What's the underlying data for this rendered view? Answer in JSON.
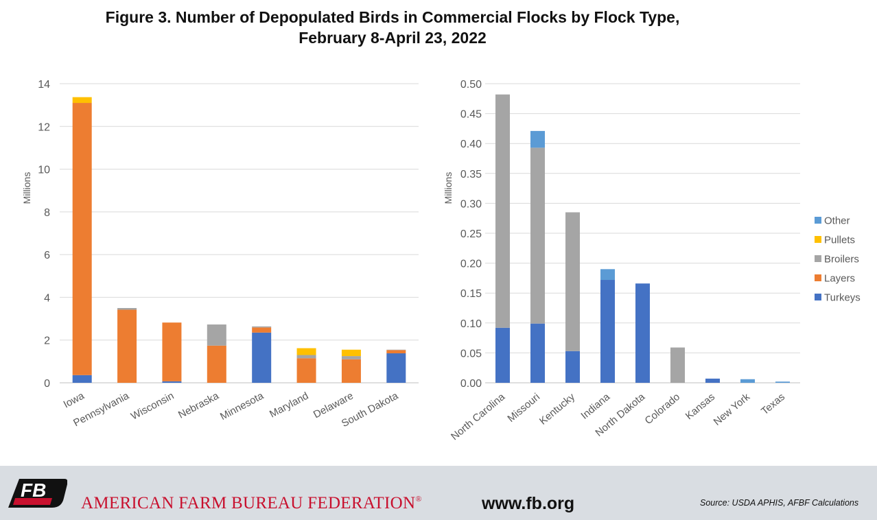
{
  "title": {
    "line1": "Figure 3. Number of Depopulated Birds in Commercial Flocks by Flock Type,",
    "line2": "February 8-April 23, 2022"
  },
  "legend": {
    "items": [
      {
        "label": "Other",
        "color": "#5b9bd5"
      },
      {
        "label": "Pullets",
        "color": "#ffc000"
      },
      {
        "label": "Broilers",
        "color": "#a5a5a5"
      },
      {
        "label": "Layers",
        "color": "#ed7d31"
      },
      {
        "label": "Turkeys",
        "color": "#4472c4"
      }
    ]
  },
  "chart_data": [
    {
      "type": "bar",
      "stacked": true,
      "ylabel": "Millions",
      "ylim": [
        0,
        14
      ],
      "yticks": [
        "0",
        "2",
        "4",
        "6",
        "8",
        "10",
        "12",
        "14"
      ],
      "grid": true,
      "categories": [
        "Iowa",
        "Pennsylvania",
        "Wisconsin",
        "Nebraska",
        "Minnesota",
        "Maryland",
        "Delaware",
        "South Dakota"
      ],
      "series": [
        {
          "name": "Turkeys",
          "color": "#4472c4",
          "values": [
            0.36,
            0.0,
            0.07,
            0.0,
            2.35,
            0.0,
            0.0,
            1.38
          ]
        },
        {
          "name": "Layers",
          "color": "#ed7d31",
          "values": [
            12.74,
            3.42,
            2.75,
            1.74,
            0.24,
            1.15,
            1.1,
            0.15
          ]
        },
        {
          "name": "Broilers",
          "color": "#a5a5a5",
          "values": [
            0.0,
            0.08,
            0.0,
            0.99,
            0.05,
            0.15,
            0.15,
            0.02
          ]
        },
        {
          "name": "Pullets",
          "color": "#ffc000",
          "values": [
            0.27,
            0.0,
            0.0,
            0.0,
            0.0,
            0.32,
            0.3,
            0.0
          ]
        },
        {
          "name": "Other",
          "color": "#5b9bd5",
          "values": [
            0.0,
            0.0,
            0.0,
            0.0,
            0.0,
            0.0,
            0.0,
            0.0
          ]
        }
      ]
    },
    {
      "type": "bar",
      "stacked": true,
      "ylabel": "Millions",
      "ylim": [
        0,
        0.5
      ],
      "yticks": [
        "0.00",
        "0.05",
        "0.10",
        "0.15",
        "0.20",
        "0.25",
        "0.30",
        "0.35",
        "0.40",
        "0.45",
        "0.50"
      ],
      "grid": true,
      "legend_position": "right",
      "categories": [
        "North Carolina",
        "Missouri",
        "Kentucky",
        "Indiana",
        "North Dakota",
        "Colorado",
        "Kansas",
        "New York",
        "Texas"
      ],
      "series": [
        {
          "name": "Turkeys",
          "color": "#4472c4",
          "values": [
            0.092,
            0.099,
            0.053,
            0.172,
            0.166,
            0.0,
            0.007,
            0.0,
            0.0
          ]
        },
        {
          "name": "Layers",
          "color": "#ed7d31",
          "values": [
            0.0,
            0.0,
            0.0,
            0.0,
            0.0,
            0.0,
            0.0,
            0.0,
            0.0
          ]
        },
        {
          "name": "Broilers",
          "color": "#a5a5a5",
          "values": [
            0.39,
            0.294,
            0.232,
            0.0,
            0.0,
            0.059,
            0.0,
            0.0,
            0.0
          ]
        },
        {
          "name": "Pullets",
          "color": "#ffc000",
          "values": [
            0.0,
            0.0,
            0.0,
            0.0,
            0.0,
            0.0,
            0.0,
            0.0,
            0.0
          ]
        },
        {
          "name": "Other",
          "color": "#5b9bd5",
          "values": [
            0.0,
            0.028,
            0.0,
            0.018,
            0.0,
            0.0,
            0.0,
            0.006,
            0.002
          ]
        }
      ]
    }
  ],
  "footer": {
    "logo_text": "FB",
    "logo_color": "#c8102e",
    "organization": "AMERICAN FARM BUREAU FEDERATION",
    "registered_mark": "®",
    "url": "www.fb.org",
    "source": "Source: USDA APHIS, AFBF Calculations"
  }
}
